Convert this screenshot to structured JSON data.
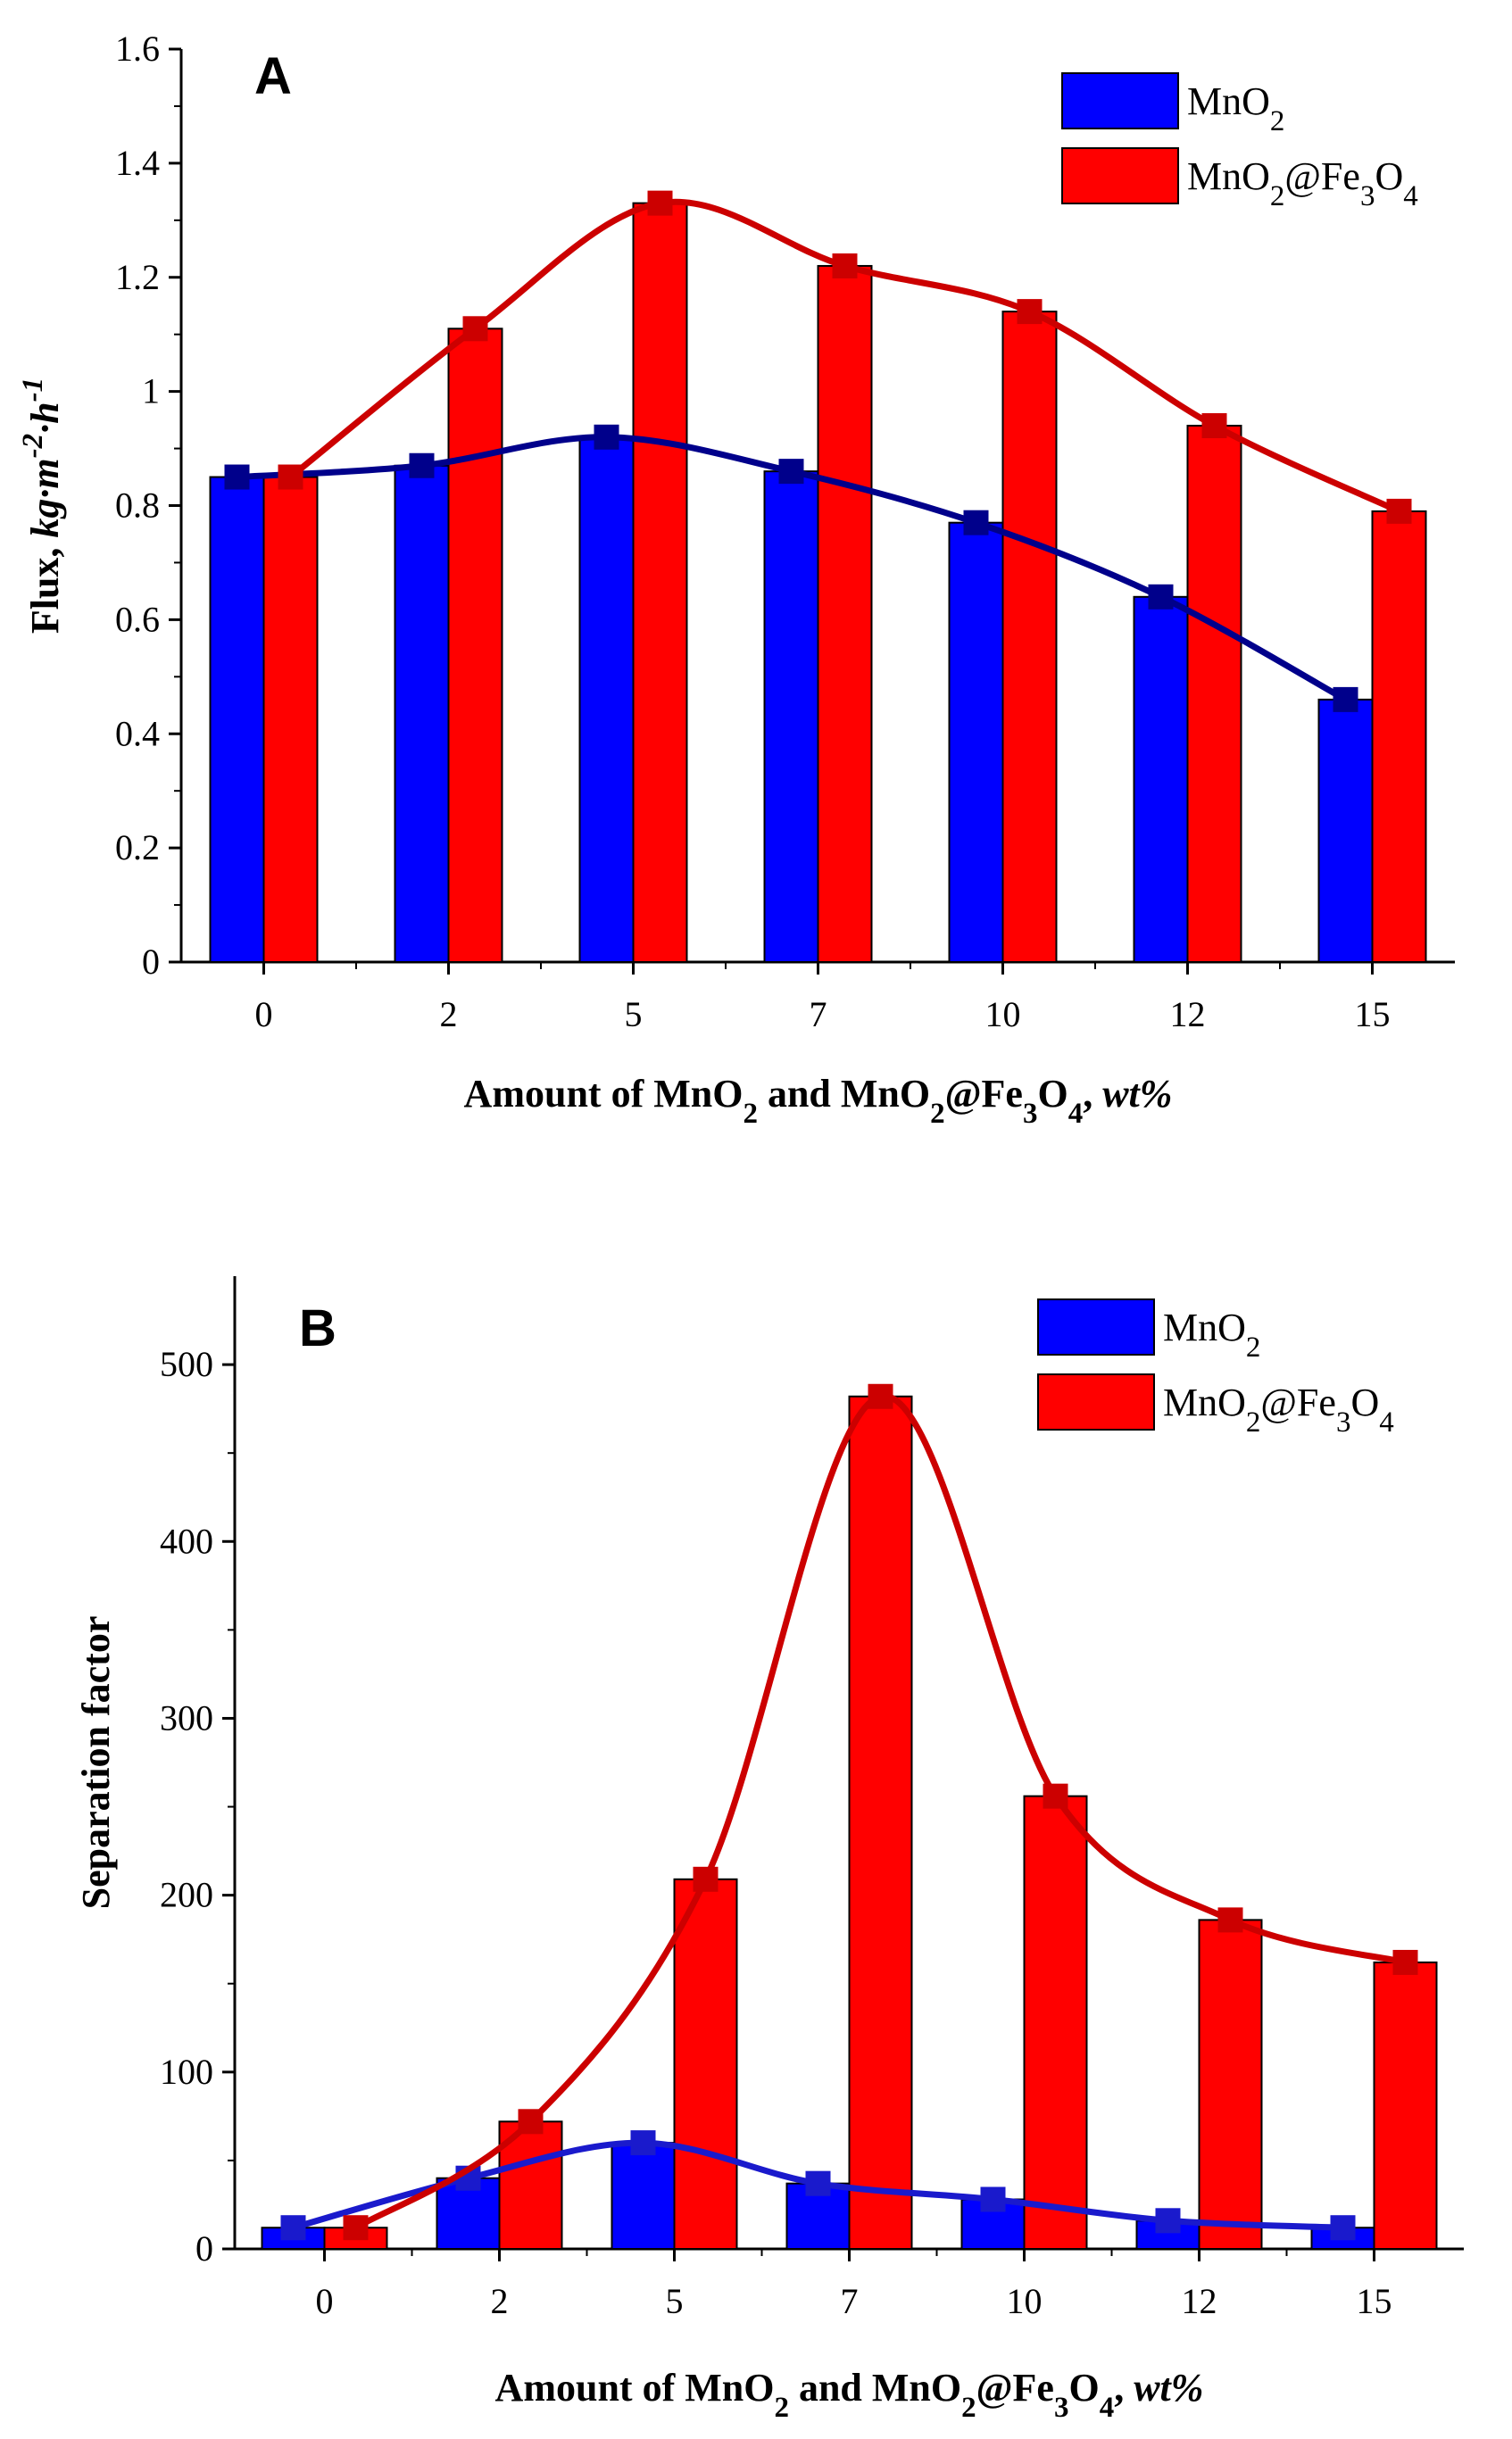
{
  "chart_data": [
    {
      "panel": "A",
      "type": "bar",
      "categories": [
        "0",
        "2",
        "5",
        "7",
        "10",
        "12",
        "15"
      ],
      "series": [
        {
          "name": "MnO2",
          "label_parts": [
            {
              "t": "MnO"
            },
            {
              "t": "2",
              "sub": true
            }
          ],
          "color": "#0000ff",
          "line_color": "#00008b",
          "values": [
            0.85,
            0.87,
            0.92,
            0.86,
            0.77,
            0.64,
            0.46
          ]
        },
        {
          "name": "MnO2@Fe3O4",
          "label_parts": [
            {
              "t": "MnO"
            },
            {
              "t": "2",
              "sub": true
            },
            {
              "t": "@Fe"
            },
            {
              "t": "3",
              "sub": true
            },
            {
              "t": "O"
            },
            {
              "t": "4",
              "sub": true
            }
          ],
          "color": "#ff0000",
          "line_color": "#cc0000",
          "values": [
            0.85,
            1.11,
            1.33,
            1.22,
            1.14,
            0.94,
            0.79
          ]
        }
      ],
      "ylim": [
        0,
        1.6
      ],
      "y_ticks": [
        0,
        0.2,
        0.4,
        0.6,
        0.8,
        1,
        1.2,
        1.4,
        1.6
      ],
      "y_tick_labels": [
        "0",
        "0.2",
        "0.4",
        "0.6",
        "0.8",
        "1",
        "1.2",
        "1.4",
        "1.6"
      ],
      "y_minor_ticks": true,
      "xlabel": "Amount of MnO2 and MnO2@Fe3O4, wt%",
      "xlabel_parts": [
        {
          "t": "Amount of MnO"
        },
        {
          "t": "2",
          "sub": true
        },
        {
          "t": " and MnO"
        },
        {
          "t": "2",
          "sub": true
        },
        {
          "t": "@Fe"
        },
        {
          "t": "3",
          "sub": true
        },
        {
          "t": "O"
        },
        {
          "t": "4",
          "sub": true
        },
        {
          "t": ", "
        },
        {
          "t": "wt%",
          "italic": true
        }
      ],
      "ylabel": "Flux, kg·m-2·h-1",
      "ylabel_parts": [
        {
          "t": "Flux, "
        },
        {
          "t": "kg·m",
          "italic": true
        },
        {
          "t": "-2",
          "italic": true,
          "sup": true
        },
        {
          "t": "·h",
          "italic": true
        },
        {
          "t": "-1",
          "italic": true,
          "sup": true
        }
      ],
      "legend": "top-right"
    },
    {
      "panel": "B",
      "type": "bar",
      "categories": [
        "0",
        "2",
        "5",
        "7",
        "10",
        "12",
        "15"
      ],
      "series": [
        {
          "name": "MnO2",
          "label_parts": [
            {
              "t": "MnO"
            },
            {
              "t": "2",
              "sub": true
            }
          ],
          "color": "#0000ff",
          "line_color": "#1a1acc",
          "values": [
            12,
            40,
            60,
            37,
            28,
            16,
            12
          ]
        },
        {
          "name": "MnO2@Fe3O4",
          "label_parts": [
            {
              "t": "MnO"
            },
            {
              "t": "2",
              "sub": true
            },
            {
              "t": "@Fe"
            },
            {
              "t": "3",
              "sub": true
            },
            {
              "t": "O"
            },
            {
              "t": "4",
              "sub": true
            }
          ],
          "color": "#ff0000",
          "line_color": "#cc0000",
          "values": [
            12,
            72,
            209,
            482,
            256,
            186,
            162
          ]
        }
      ],
      "ylim": [
        0,
        550
      ],
      "y_ticks": [
        0,
        100,
        200,
        300,
        400,
        500
      ],
      "y_tick_labels": [
        "0",
        "100",
        "200",
        "300",
        "400",
        "500"
      ],
      "y_minor_ticks": true,
      "xlabel": "Amount of MnO2 and MnO2@Fe3O4, wt%",
      "xlabel_parts": [
        {
          "t": "Amount of MnO"
        },
        {
          "t": "2",
          "sub": true
        },
        {
          "t": " and MnO"
        },
        {
          "t": "2",
          "sub": true
        },
        {
          "t": "@Fe"
        },
        {
          "t": "3",
          "sub": true
        },
        {
          "t": "O"
        },
        {
          "t": "4",
          "sub": true
        },
        {
          "t": ", "
        },
        {
          "t": "wt%",
          "italic": true
        }
      ],
      "ylabel": "Separation factor",
      "ylabel_parts": [
        {
          "t": "Separation factor"
        }
      ],
      "legend": "top-right"
    }
  ]
}
